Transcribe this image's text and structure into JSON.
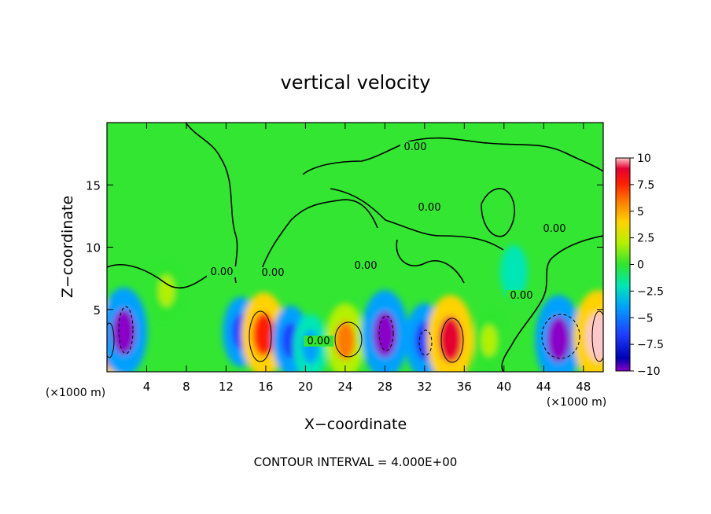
{
  "chart_data": {
    "type": "heatmap",
    "title": "vertical velocity",
    "xlabel": "X−coordinate",
    "ylabel": "Z−coordinate",
    "x_unit_left": "(×1000 m)",
    "x_unit_right": "(×1000 m)",
    "xlim": [
      0,
      50
    ],
    "ylim": [
      0,
      20
    ],
    "x_ticks": [
      4,
      8,
      12,
      16,
      20,
      24,
      28,
      32,
      36,
      40,
      44,
      48
    ],
    "y_ticks": [
      5,
      10,
      15
    ],
    "x_tick_labels": [
      "4",
      "8",
      "12",
      "16",
      "20",
      "24",
      "28",
      "32",
      "36",
      "40",
      "44",
      "48"
    ],
    "y_tick_labels": [
      "5",
      "10",
      "15"
    ],
    "colorbar": {
      "min": -10,
      "max": 10,
      "tick_values": [
        10,
        7.5,
        5,
        2.5,
        0,
        -2.5,
        -5,
        -7.5,
        -10
      ],
      "tick_labels": [
        "10",
        "7.5",
        "5",
        "2.5",
        "0",
        "−2.5",
        "−5",
        "−7.5",
        "−10"
      ]
    },
    "contour_labels": [
      "0.00",
      "0.00",
      "0.00",
      "0.00",
      "0.00",
      "0.00",
      "0.00",
      "0.00"
    ],
    "cells": [
      {
        "x": 0.2,
        "z": 2.2,
        "w": 9
      },
      {
        "x": 1.7,
        "z": 3.2,
        "w": -9
      },
      {
        "x": 6.0,
        "z": 6.5,
        "w": 3
      },
      {
        "x": 13.5,
        "z": 3.2,
        "w": -5
      },
      {
        "x": 15.8,
        "z": 3.0,
        "w": 8
      },
      {
        "x": 18.5,
        "z": 2.5,
        "w": -5
      },
      {
        "x": 20.5,
        "z": 2.0,
        "w": -4
      },
      {
        "x": 24.0,
        "z": 2.5,
        "w": 6
      },
      {
        "x": 28.0,
        "z": 3.0,
        "w": -9
      },
      {
        "x": 32.0,
        "z": 2.5,
        "w": -6
      },
      {
        "x": 34.6,
        "z": 2.6,
        "w": 9
      },
      {
        "x": 38.5,
        "z": 2.5,
        "w": 3
      },
      {
        "x": 45.5,
        "z": 2.6,
        "w": -9
      },
      {
        "x": 49.5,
        "z": 2.8,
        "w": 10
      },
      {
        "x": 41.0,
        "z": 8.0,
        "w": -1.5
      }
    ],
    "annotation": "CONTOUR INTERVAL = 4.000E+00"
  }
}
